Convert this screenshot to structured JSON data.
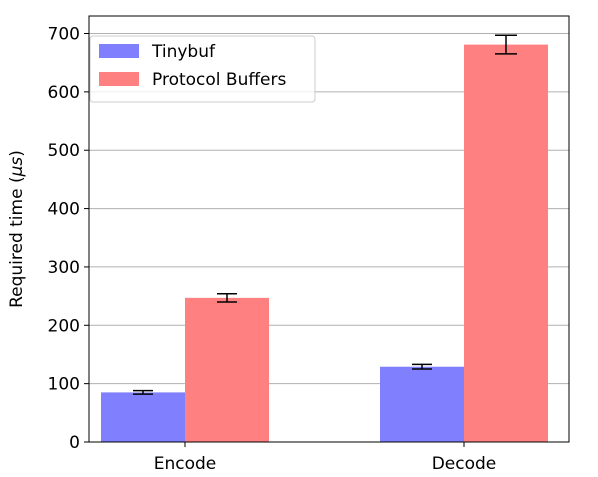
{
  "chart_data": {
    "type": "bar",
    "categories": [
      "Encode",
      "Decode"
    ],
    "series": [
      {
        "name": "Tinybuf",
        "values": [
          85,
          129
        ],
        "errors": [
          3,
          4
        ],
        "color": "#8080ff"
      },
      {
        "name": "Protocol Buffers",
        "values": [
          247,
          681
        ],
        "errors": [
          7,
          16
        ],
        "color": "#ff8080"
      }
    ],
    "xlabel": "",
    "ylabel_prefix": "Required time (",
    "ylabel_unit": "μs",
    "ylabel_suffix": ")",
    "ylim": [
      0,
      730
    ],
    "yticks": [
      "0",
      "100",
      "200",
      "300",
      "400",
      "500",
      "600",
      "700"
    ],
    "ytick_values": [
      0,
      100,
      200,
      300,
      400,
      500,
      600,
      700
    ],
    "grid": "horizontal",
    "legend_position": "top-left"
  }
}
